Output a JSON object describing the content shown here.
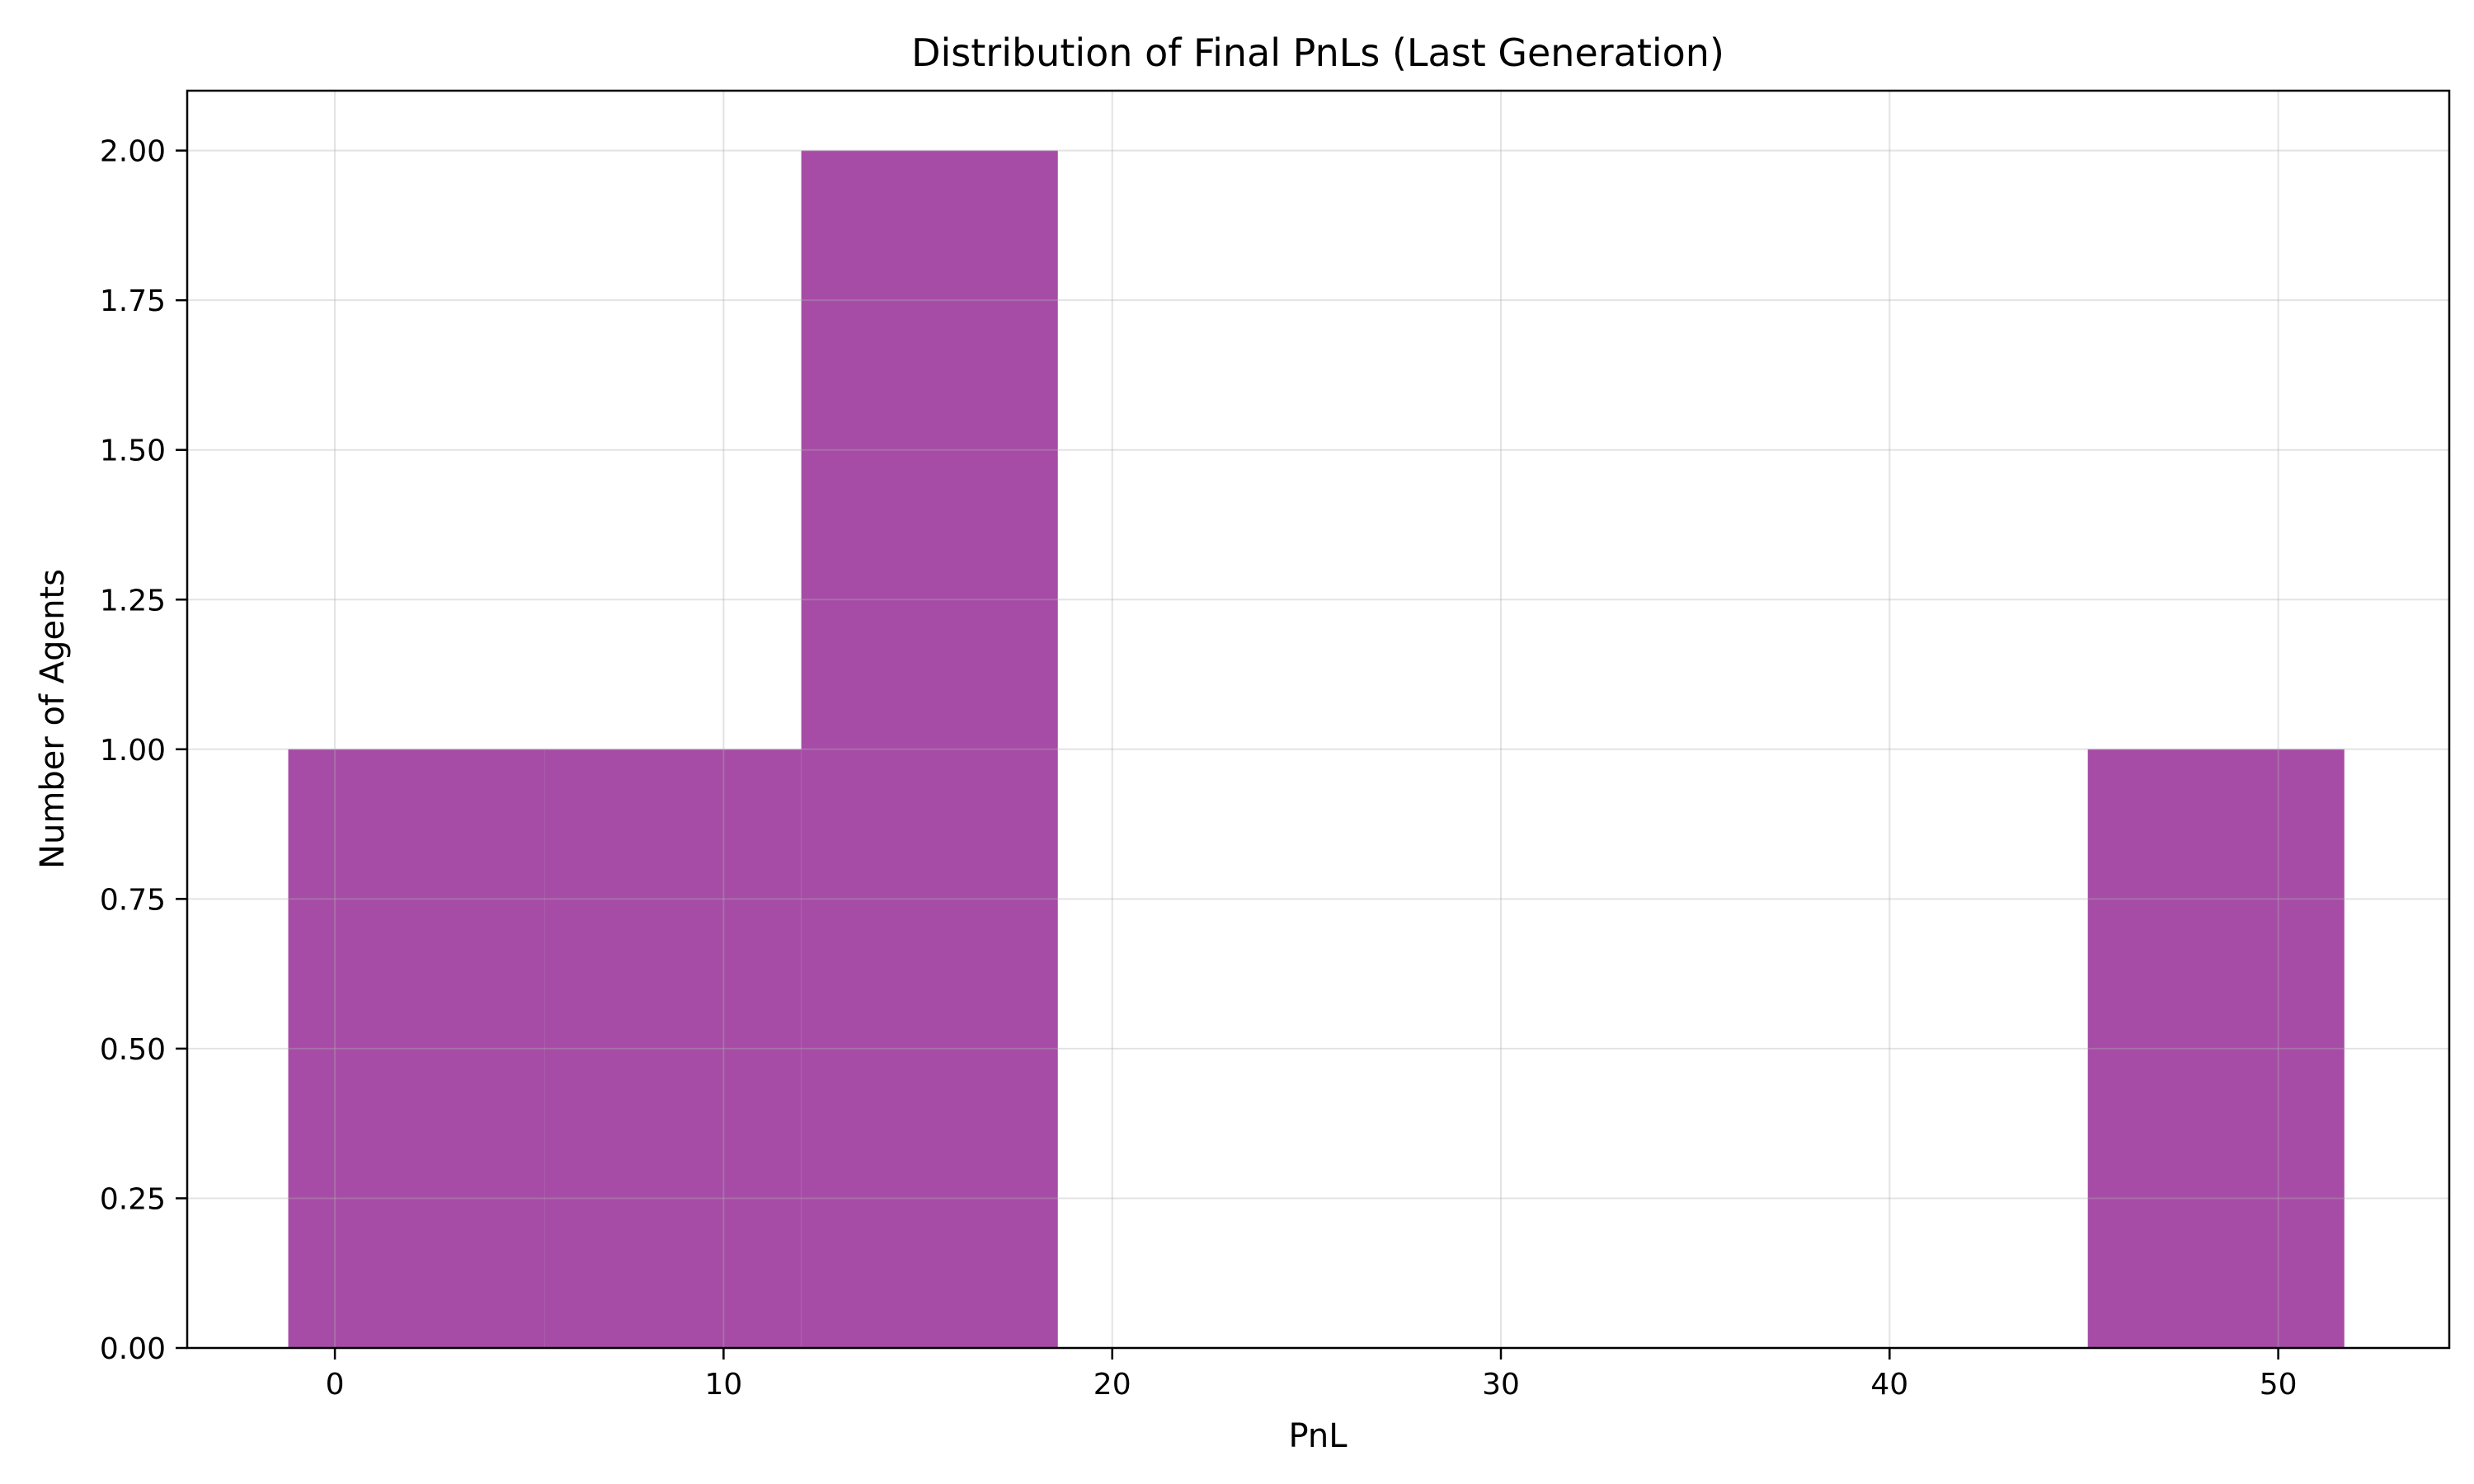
{
  "chart_data": {
    "type": "histogram",
    "title": "Distribution of Final PnLs (Last Generation)",
    "xlabel": "PnL",
    "ylabel": "Number of Agents",
    "xlim": [
      -3.8,
      54.4
    ],
    "ylim": [
      0,
      2.1
    ],
    "x_ticks": [
      0,
      10,
      20,
      30,
      40,
      50
    ],
    "y_ticks": [
      "0.00",
      "0.25",
      "0.50",
      "0.75",
      "1.00",
      "1.25",
      "1.50",
      "1.75",
      "2.00"
    ],
    "bins": [
      {
        "x0": -1.2,
        "x1": 5.4,
        "count": 1
      },
      {
        "x0": 5.4,
        "x1": 12.0,
        "count": 1
      },
      {
        "x0": 12.0,
        "x1": 18.6,
        "count": 2
      },
      {
        "x0": 18.6,
        "x1": 25.2,
        "count": 0
      },
      {
        "x0": 25.2,
        "x1": 31.9,
        "count": 0
      },
      {
        "x0": 31.9,
        "x1": 38.5,
        "count": 0
      },
      {
        "x0": 38.5,
        "x1": 45.1,
        "count": 0
      },
      {
        "x0": 45.1,
        "x1": 51.7,
        "count": 1
      }
    ],
    "bar_color": "#a64ca6",
    "grid": true,
    "legend": "none"
  }
}
